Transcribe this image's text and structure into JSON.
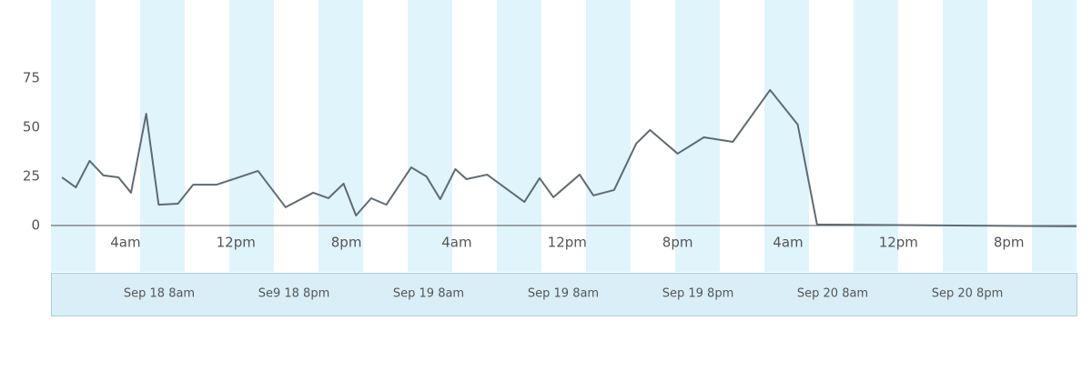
{
  "chart_data": {
    "type": "line",
    "x": [
      -4.6,
      -3.6,
      -2.6,
      -1.6,
      -0.5,
      0.4,
      1.5,
      2.4,
      3.8,
      4.9,
      6.6,
      9.6,
      11.6,
      13.6,
      14.7,
      15.8,
      16.7,
      17.8,
      18.9,
      20.7,
      21.8,
      22.8,
      23.9,
      24.7,
      26.2,
      28.9,
      30.0,
      31.0,
      32.9,
      33.9,
      35.4,
      37.0,
      38.0,
      40.0,
      41.9,
      44.0,
      46.7,
      48.7,
      50.1,
      68.9
    ],
    "series": [
      {
        "color": "#5f6b73",
        "values": [
          24.5,
          19.4,
          32.9,
          25.5,
          24.5,
          16.7,
          56.9,
          10.6,
          11.1,
          20.8,
          20.8,
          27.8,
          9.3,
          16.7,
          13.9,
          21.3,
          5.1,
          13.9,
          10.6,
          29.6,
          25,
          13.4,
          28.7,
          23.6,
          25.9,
          12,
          24.1,
          14.4,
          25.9,
          15.3,
          18.1,
          41.7,
          48.6,
          36.6,
          44.9,
          42.6,
          69,
          51.4,
          0.5,
          -0.4
        ]
      }
    ],
    "xlim": [
      -5.4,
      68.9
    ],
    "xticks": [
      {
        "value": 0,
        "label": "4am"
      },
      {
        "value": 8,
        "label": "12pm"
      },
      {
        "value": 16,
        "label": "8pm"
      },
      {
        "value": 24,
        "label": "4am"
      },
      {
        "value": 32,
        "label": "12pm"
      },
      {
        "value": 40,
        "label": "8pm"
      },
      {
        "value": 48,
        "label": "4am"
      },
      {
        "value": 56,
        "label": "12pm"
      },
      {
        "value": 64,
        "label": "8pm"
      }
    ],
    "ylim": [
      -23.6,
      114.8
    ],
    "yticks": [
      0,
      25,
      50,
      75
    ],
    "navigator_labels": [
      "Sep 18 8am",
      "Se9 18 8pm",
      "Sep 19 8am",
      "Sep 19 8am",
      "Sep 19 8pm",
      "Sep 20 8am",
      "Sep 20 8pm"
    ]
  }
}
